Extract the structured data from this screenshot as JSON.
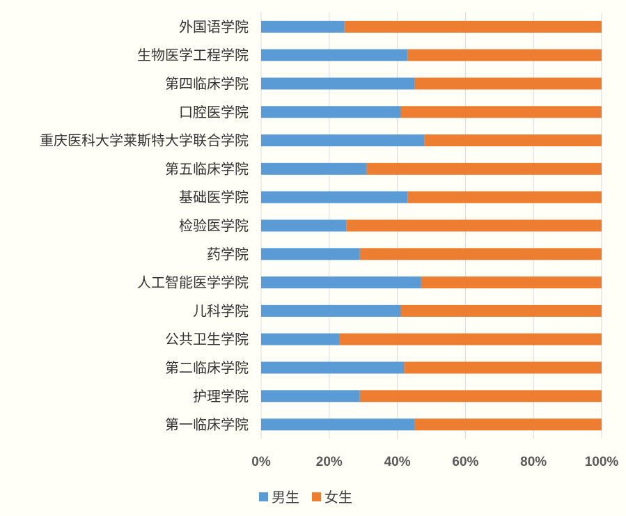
{
  "chart_data": {
    "type": "bar",
    "orientation": "horizontal",
    "stacked": "percent",
    "categories": [
      "外国语学院",
      "生物医学工程学院",
      "第四临床学院",
      "口腔医学院",
      "重庆医科大学莱斯特大学联合学院",
      "第五临床学院",
      "基础医学院",
      "检验医学院",
      "药学院",
      "人工智能医学学院",
      "儿科学院",
      "公共卫生学院",
      "第二临床学院",
      "护理学院",
      "第一临床学院"
    ],
    "series": [
      {
        "name": "男生",
        "color": "#5B9BD5",
        "values": [
          24.5,
          43,
          45,
          41,
          48,
          31,
          43,
          25,
          29,
          47,
          41,
          23,
          42,
          29,
          45
        ]
      },
      {
        "name": "女生",
        "color": "#ED7D31",
        "values": [
          75.5,
          57,
          55,
          59,
          52,
          69,
          57,
          75,
          71,
          53,
          59,
          77,
          58,
          71,
          55
        ]
      }
    ],
    "xlim": [
      0,
      100
    ],
    "xticks": [
      "0%",
      "20%",
      "40%",
      "60%",
      "80%",
      "100%"
    ],
    "grid": true,
    "legend_position": "bottom"
  }
}
